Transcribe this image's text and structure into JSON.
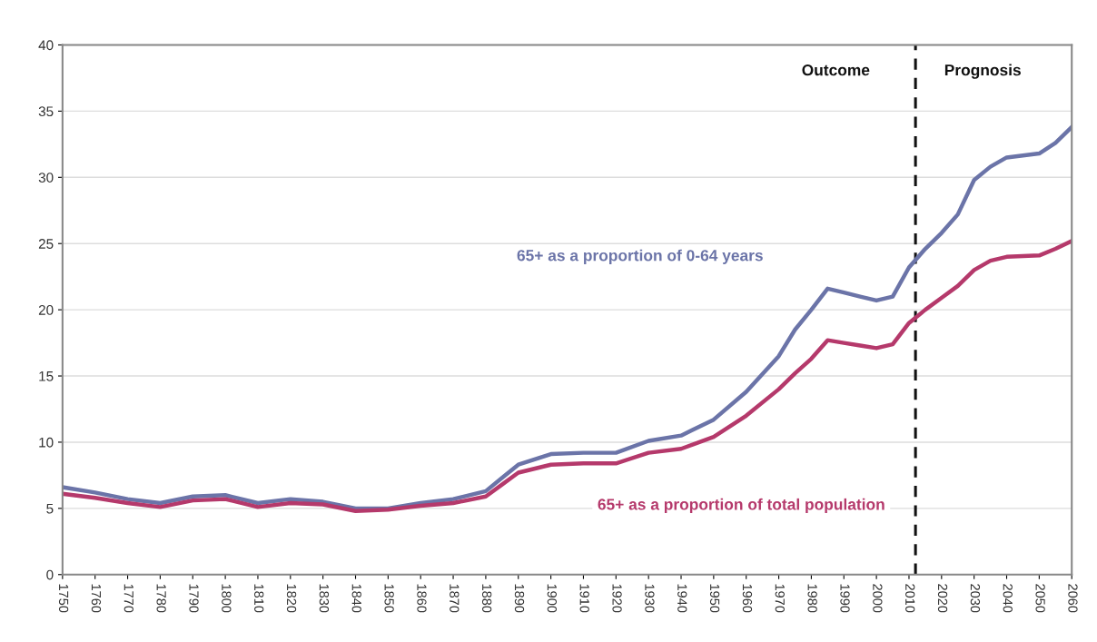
{
  "chart_data": {
    "type": "line",
    "x": [
      1750,
      1760,
      1770,
      1780,
      1790,
      1800,
      1810,
      1820,
      1830,
      1840,
      1850,
      1860,
      1870,
      1880,
      1885,
      1890,
      1900,
      1910,
      1920,
      1930,
      1940,
      1950,
      1960,
      1970,
      1975,
      1980,
      1985,
      1990,
      1995,
      2000,
      2005,
      2010,
      2015,
      2020,
      2025,
      2030,
      2035,
      2040,
      2050,
      2055,
      2060
    ],
    "series": [
      {
        "name": "65+ as a proportion of 0-64 years",
        "color": "#6b74a8",
        "values": [
          6.6,
          6.2,
          5.7,
          5.4,
          5.9,
          6.0,
          5.4,
          5.7,
          5.5,
          5.0,
          5.0,
          5.4,
          5.7,
          6.3,
          7.3,
          8.3,
          9.1,
          9.2,
          9.2,
          10.1,
          10.5,
          11.7,
          13.8,
          16.5,
          18.5,
          20.0,
          21.6,
          21.3,
          21.0,
          20.7,
          21.0,
          23.2,
          24.6,
          25.8,
          27.2,
          29.8,
          30.8,
          31.5,
          31.8,
          32.6,
          33.8
        ]
      },
      {
        "name": "65+ as a proportion of total population",
        "color": "#b5396b",
        "values": [
          6.1,
          5.8,
          5.4,
          5.1,
          5.6,
          5.7,
          5.1,
          5.4,
          5.3,
          4.8,
          4.9,
          5.2,
          5.4,
          5.9,
          6.8,
          7.7,
          8.3,
          8.4,
          8.4,
          9.2,
          9.5,
          10.4,
          12.0,
          14.0,
          15.2,
          16.3,
          17.7,
          17.5,
          17.3,
          17.1,
          17.4,
          19.0,
          20.0,
          20.9,
          21.8,
          23.0,
          23.7,
          24.0,
          24.1,
          24.6,
          25.2
        ]
      }
    ],
    "xlim": [
      1750,
      2060
    ],
    "xticks": [
      1750,
      1760,
      1770,
      1780,
      1790,
      1800,
      1810,
      1820,
      1830,
      1840,
      1850,
      1860,
      1870,
      1880,
      1890,
      1900,
      1910,
      1920,
      1930,
      1940,
      1950,
      1960,
      1970,
      1980,
      1990,
      2000,
      2010,
      2020,
      2030,
      2040,
      2050,
      2060
    ],
    "ylim": [
      0,
      40
    ],
    "yticks": [
      0,
      5,
      10,
      15,
      20,
      25,
      30,
      35,
      40
    ],
    "grid": "y",
    "marker": "none",
    "line_style": "solid",
    "legend": false,
    "ref_lines": [
      {
        "axis": "x",
        "value": 2012,
        "color": "#111111",
        "line_style": "dashed"
      }
    ],
    "annotations": [
      "Outcome",
      "Prognosis"
    ]
  }
}
